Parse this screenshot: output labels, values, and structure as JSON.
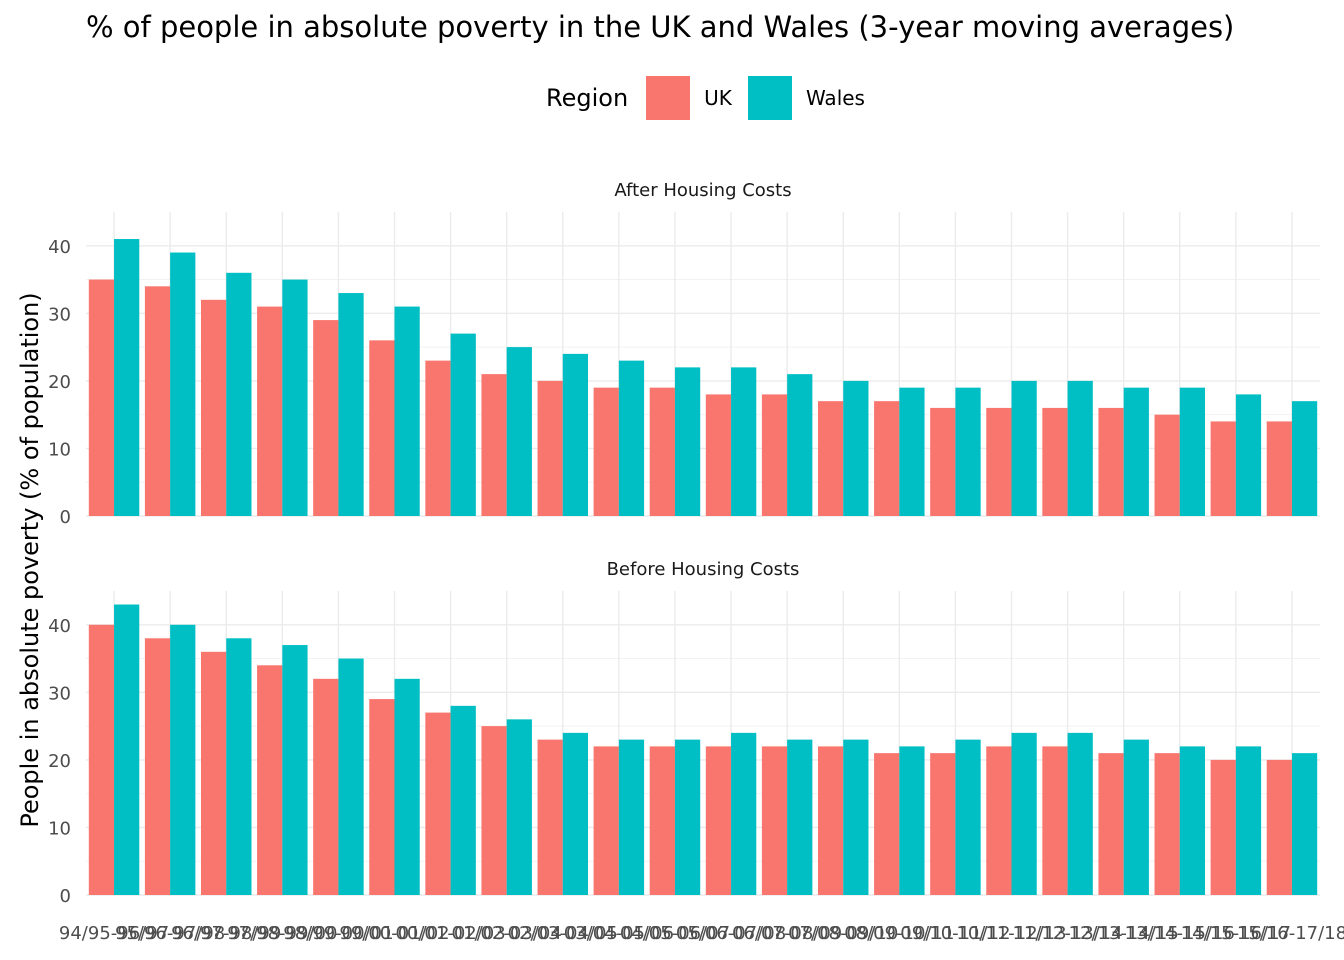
{
  "chart_data": {
    "type": "bar",
    "title": "% of people in absolute poverty in the UK and Wales (3-year moving averages)",
    "ylabel": "People in absolute poverty (% of population)",
    "xlabel": "",
    "legend": {
      "title": "Region",
      "placement": "top"
    },
    "grid": true,
    "categories": [
      "94/95-96/97",
      "95/96-97/98",
      "96/97-98/99",
      "97/98-99/00",
      "98/99-00/01",
      "99/00-01/02",
      "00/01-02/03",
      "01/02-03/04",
      "02/03-04/05",
      "03/04-05/06",
      "04/05-06/07",
      "05/06-07/08",
      "06/07-08/09",
      "07/08-09/10",
      "08/09-10/11",
      "09/10-11/12",
      "10/11-12/13",
      "11/12-13/14",
      "12/13-14/15",
      "13/14-15/16",
      "14/15-16/17",
      "15/16-17/18"
    ],
    "series_meta": [
      {
        "name": "UK",
        "color": "#F8766D"
      },
      {
        "name": "Wales",
        "color": "#00BFC4"
      }
    ],
    "panels": [
      {
        "label": "After Housing Costs",
        "ylim": [
          0,
          45
        ],
        "yticks": [
          0,
          10,
          20,
          30,
          40
        ],
        "series": [
          {
            "name": "UK",
            "values": [
              35,
              34,
              32,
              31,
              29,
              26,
              23,
              21,
              20,
              19,
              19,
              18,
              18,
              17,
              17,
              16,
              16,
              16,
              16,
              15,
              14,
              14
            ]
          },
          {
            "name": "Wales",
            "values": [
              41,
              39,
              36,
              35,
              33,
              31,
              27,
              25,
              24,
              23,
              22,
              22,
              21,
              20,
              19,
              19,
              20,
              20,
              19,
              19,
              18,
              17
            ]
          }
        ]
      },
      {
        "label": "Before Housing Costs",
        "ylim": [
          0,
          45
        ],
        "yticks": [
          0,
          10,
          20,
          30,
          40
        ],
        "series": [
          {
            "name": "UK",
            "values": [
              40,
              38,
              36,
              34,
              32,
              29,
              27,
              25,
              23,
              22,
              22,
              22,
              22,
              22,
              21,
              21,
              22,
              22,
              21,
              21,
              20,
              20
            ]
          },
          {
            "name": "Wales",
            "values": [
              43,
              40,
              38,
              37,
              35,
              32,
              28,
              26,
              24,
              23,
              23,
              24,
              23,
              23,
              22,
              23,
              24,
              24,
              23,
              22,
              22,
              21
            ]
          }
        ]
      }
    ]
  }
}
